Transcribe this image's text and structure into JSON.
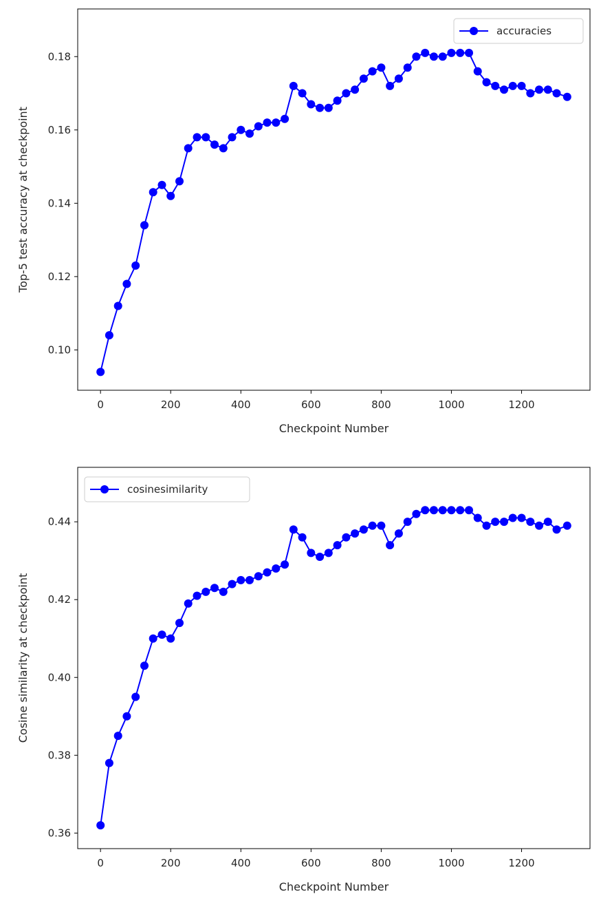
{
  "colors": {
    "series": "#0000ff",
    "frame": "#000000",
    "legend_border": "#cccccc"
  },
  "chart_data": [
    {
      "type": "line",
      "marker": "circle",
      "xlabel": "Checkpoint Number",
      "ylabel": "Top-5 test accuracy at checkpoint",
      "xlim": [
        -65,
        1395
      ],
      "ylim": [
        0.089,
        0.193
      ],
      "xticks": [
        0,
        200,
        400,
        600,
        800,
        1000,
        1200
      ],
      "yticks": [
        0.1,
        0.12,
        0.14,
        0.16,
        0.18
      ],
      "ytick_labels": [
        "0.10",
        "0.12",
        "0.14",
        "0.16",
        "0.18"
      ],
      "legend_position": "upper right",
      "series": [
        {
          "name": "accuracies",
          "x": [
            0,
            25,
            50,
            75,
            100,
            125,
            150,
            175,
            200,
            225,
            250,
            275,
            300,
            325,
            350,
            375,
            400,
            425,
            450,
            475,
            500,
            525,
            550,
            575,
            600,
            625,
            650,
            675,
            700,
            725,
            750,
            775,
            800,
            825,
            850,
            875,
            900,
            925,
            950,
            975,
            1000,
            1025,
            1050,
            1075,
            1100,
            1125,
            1150,
            1175,
            1200,
            1225,
            1250,
            1275,
            1300,
            1330
          ],
          "values": [
            0.094,
            0.104,
            0.112,
            0.118,
            0.123,
            0.134,
            0.143,
            0.145,
            0.142,
            0.146,
            0.155,
            0.158,
            0.158,
            0.156,
            0.155,
            0.158,
            0.16,
            0.159,
            0.161,
            0.162,
            0.162,
            0.163,
            0.172,
            0.17,
            0.167,
            0.166,
            0.166,
            0.168,
            0.17,
            0.171,
            0.174,
            0.176,
            0.177,
            0.172,
            0.174,
            0.177,
            0.18,
            0.181,
            0.18,
            0.18,
            0.181,
            0.181,
            0.181,
            0.176,
            0.173,
            0.172,
            0.171,
            0.172,
            0.172,
            0.17,
            0.171,
            0.171,
            0.17,
            0.169
          ]
        }
      ]
    },
    {
      "type": "line",
      "marker": "circle",
      "xlabel": "Checkpoint Number",
      "ylabel": "Cosine similarity at checkpoint",
      "xlim": [
        -65,
        1395
      ],
      "ylim": [
        0.356,
        0.454
      ],
      "xticks": [
        0,
        200,
        400,
        600,
        800,
        1000,
        1200
      ],
      "yticks": [
        0.36,
        0.38,
        0.4,
        0.42,
        0.44
      ],
      "ytick_labels": [
        "0.36",
        "0.38",
        "0.40",
        "0.42",
        "0.44"
      ],
      "legend_position": "upper left",
      "series": [
        {
          "name": "cosinesimilarity",
          "x": [
            0,
            25,
            50,
            75,
            100,
            125,
            150,
            175,
            200,
            225,
            250,
            275,
            300,
            325,
            350,
            375,
            400,
            425,
            450,
            475,
            500,
            525,
            550,
            575,
            600,
            625,
            650,
            675,
            700,
            725,
            750,
            775,
            800,
            825,
            850,
            875,
            900,
            925,
            950,
            975,
            1000,
            1025,
            1050,
            1075,
            1100,
            1125,
            1150,
            1175,
            1200,
            1225,
            1250,
            1275,
            1300,
            1330
          ],
          "values": [
            0.362,
            0.378,
            0.385,
            0.39,
            0.395,
            0.403,
            0.41,
            0.411,
            0.41,
            0.414,
            0.419,
            0.421,
            0.422,
            0.423,
            0.422,
            0.424,
            0.425,
            0.425,
            0.426,
            0.427,
            0.428,
            0.429,
            0.438,
            0.436,
            0.432,
            0.431,
            0.432,
            0.434,
            0.436,
            0.437,
            0.438,
            0.439,
            0.439,
            0.434,
            0.437,
            0.44,
            0.442,
            0.443,
            0.443,
            0.443,
            0.443,
            0.443,
            0.443,
            0.441,
            0.439,
            0.44,
            0.44,
            0.441,
            0.441,
            0.44,
            0.439,
            0.44,
            0.438,
            0.439
          ]
        }
      ]
    }
  ]
}
